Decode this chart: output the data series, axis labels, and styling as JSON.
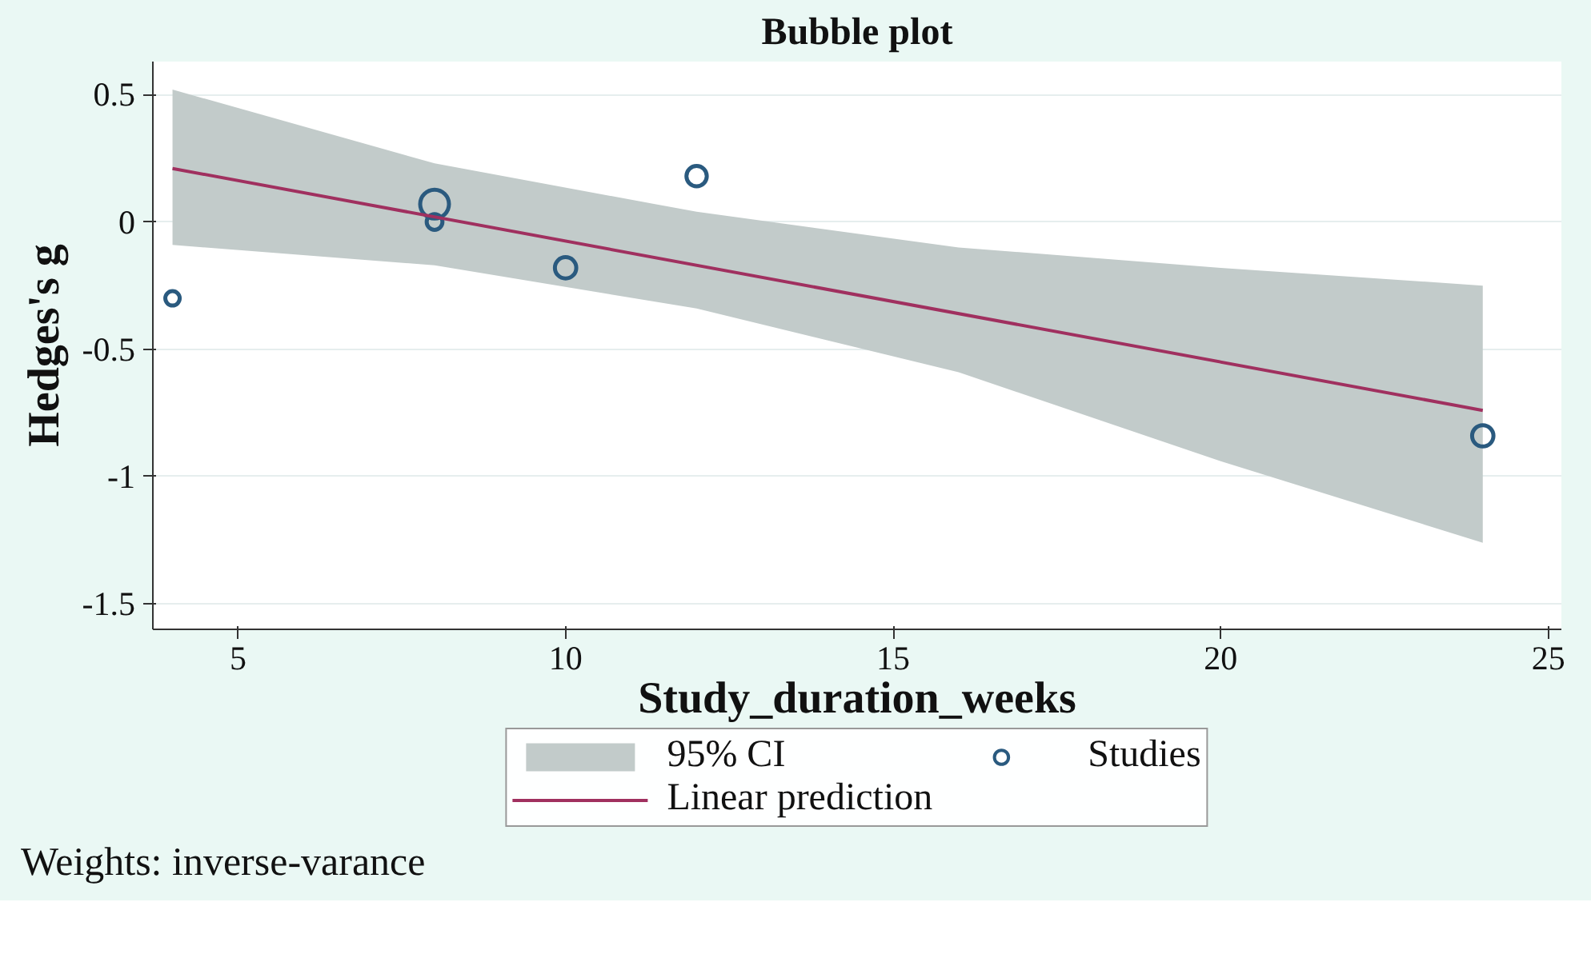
{
  "chart_data": {
    "type": "bubble",
    "title": "Bubble plot",
    "xlabel": "Study_duration_weeks",
    "ylabel": "Hedges's g",
    "xlim": [
      3.7,
      25.2
    ],
    "ylim": [
      -1.6,
      0.63
    ],
    "xticks": [
      5,
      10,
      15,
      20,
      25
    ],
    "yticks": [
      0.5,
      0,
      -0.5,
      -1,
      -1.5
    ],
    "grid": "y",
    "legend": "bottom",
    "series": [
      {
        "name": "95% CI",
        "type": "area",
        "color": "#c2cbca",
        "x": [
          4,
          8,
          12,
          16,
          20,
          24
        ],
        "values": [
          null,
          null,
          null,
          null,
          null,
          null
        ],
        "lower": [
          -0.09,
          -0.17,
          -0.34,
          -0.59,
          -0.94,
          -1.26
        ],
        "upper": [
          0.52,
          0.23,
          0.04,
          -0.1,
          -0.18,
          -0.25
        ]
      },
      {
        "name": "Studies",
        "color": "#2a5a7f",
        "x": [
          4,
          8,
          8,
          10,
          12,
          24
        ],
        "values": [
          -0.3,
          0.07,
          0.0,
          -0.18,
          0.18,
          -0.84
        ],
        "sizes": [
          0.25,
          1,
          0.3,
          0.55,
          0.5,
          0.55
        ]
      },
      {
        "name": "Linear prediction",
        "type": "line",
        "color": "#a0305f",
        "x": [
          4,
          24
        ],
        "values": [
          0.21,
          -0.74
        ]
      }
    ],
    "annotations": [
      "Weights: inverse-varance"
    ]
  }
}
